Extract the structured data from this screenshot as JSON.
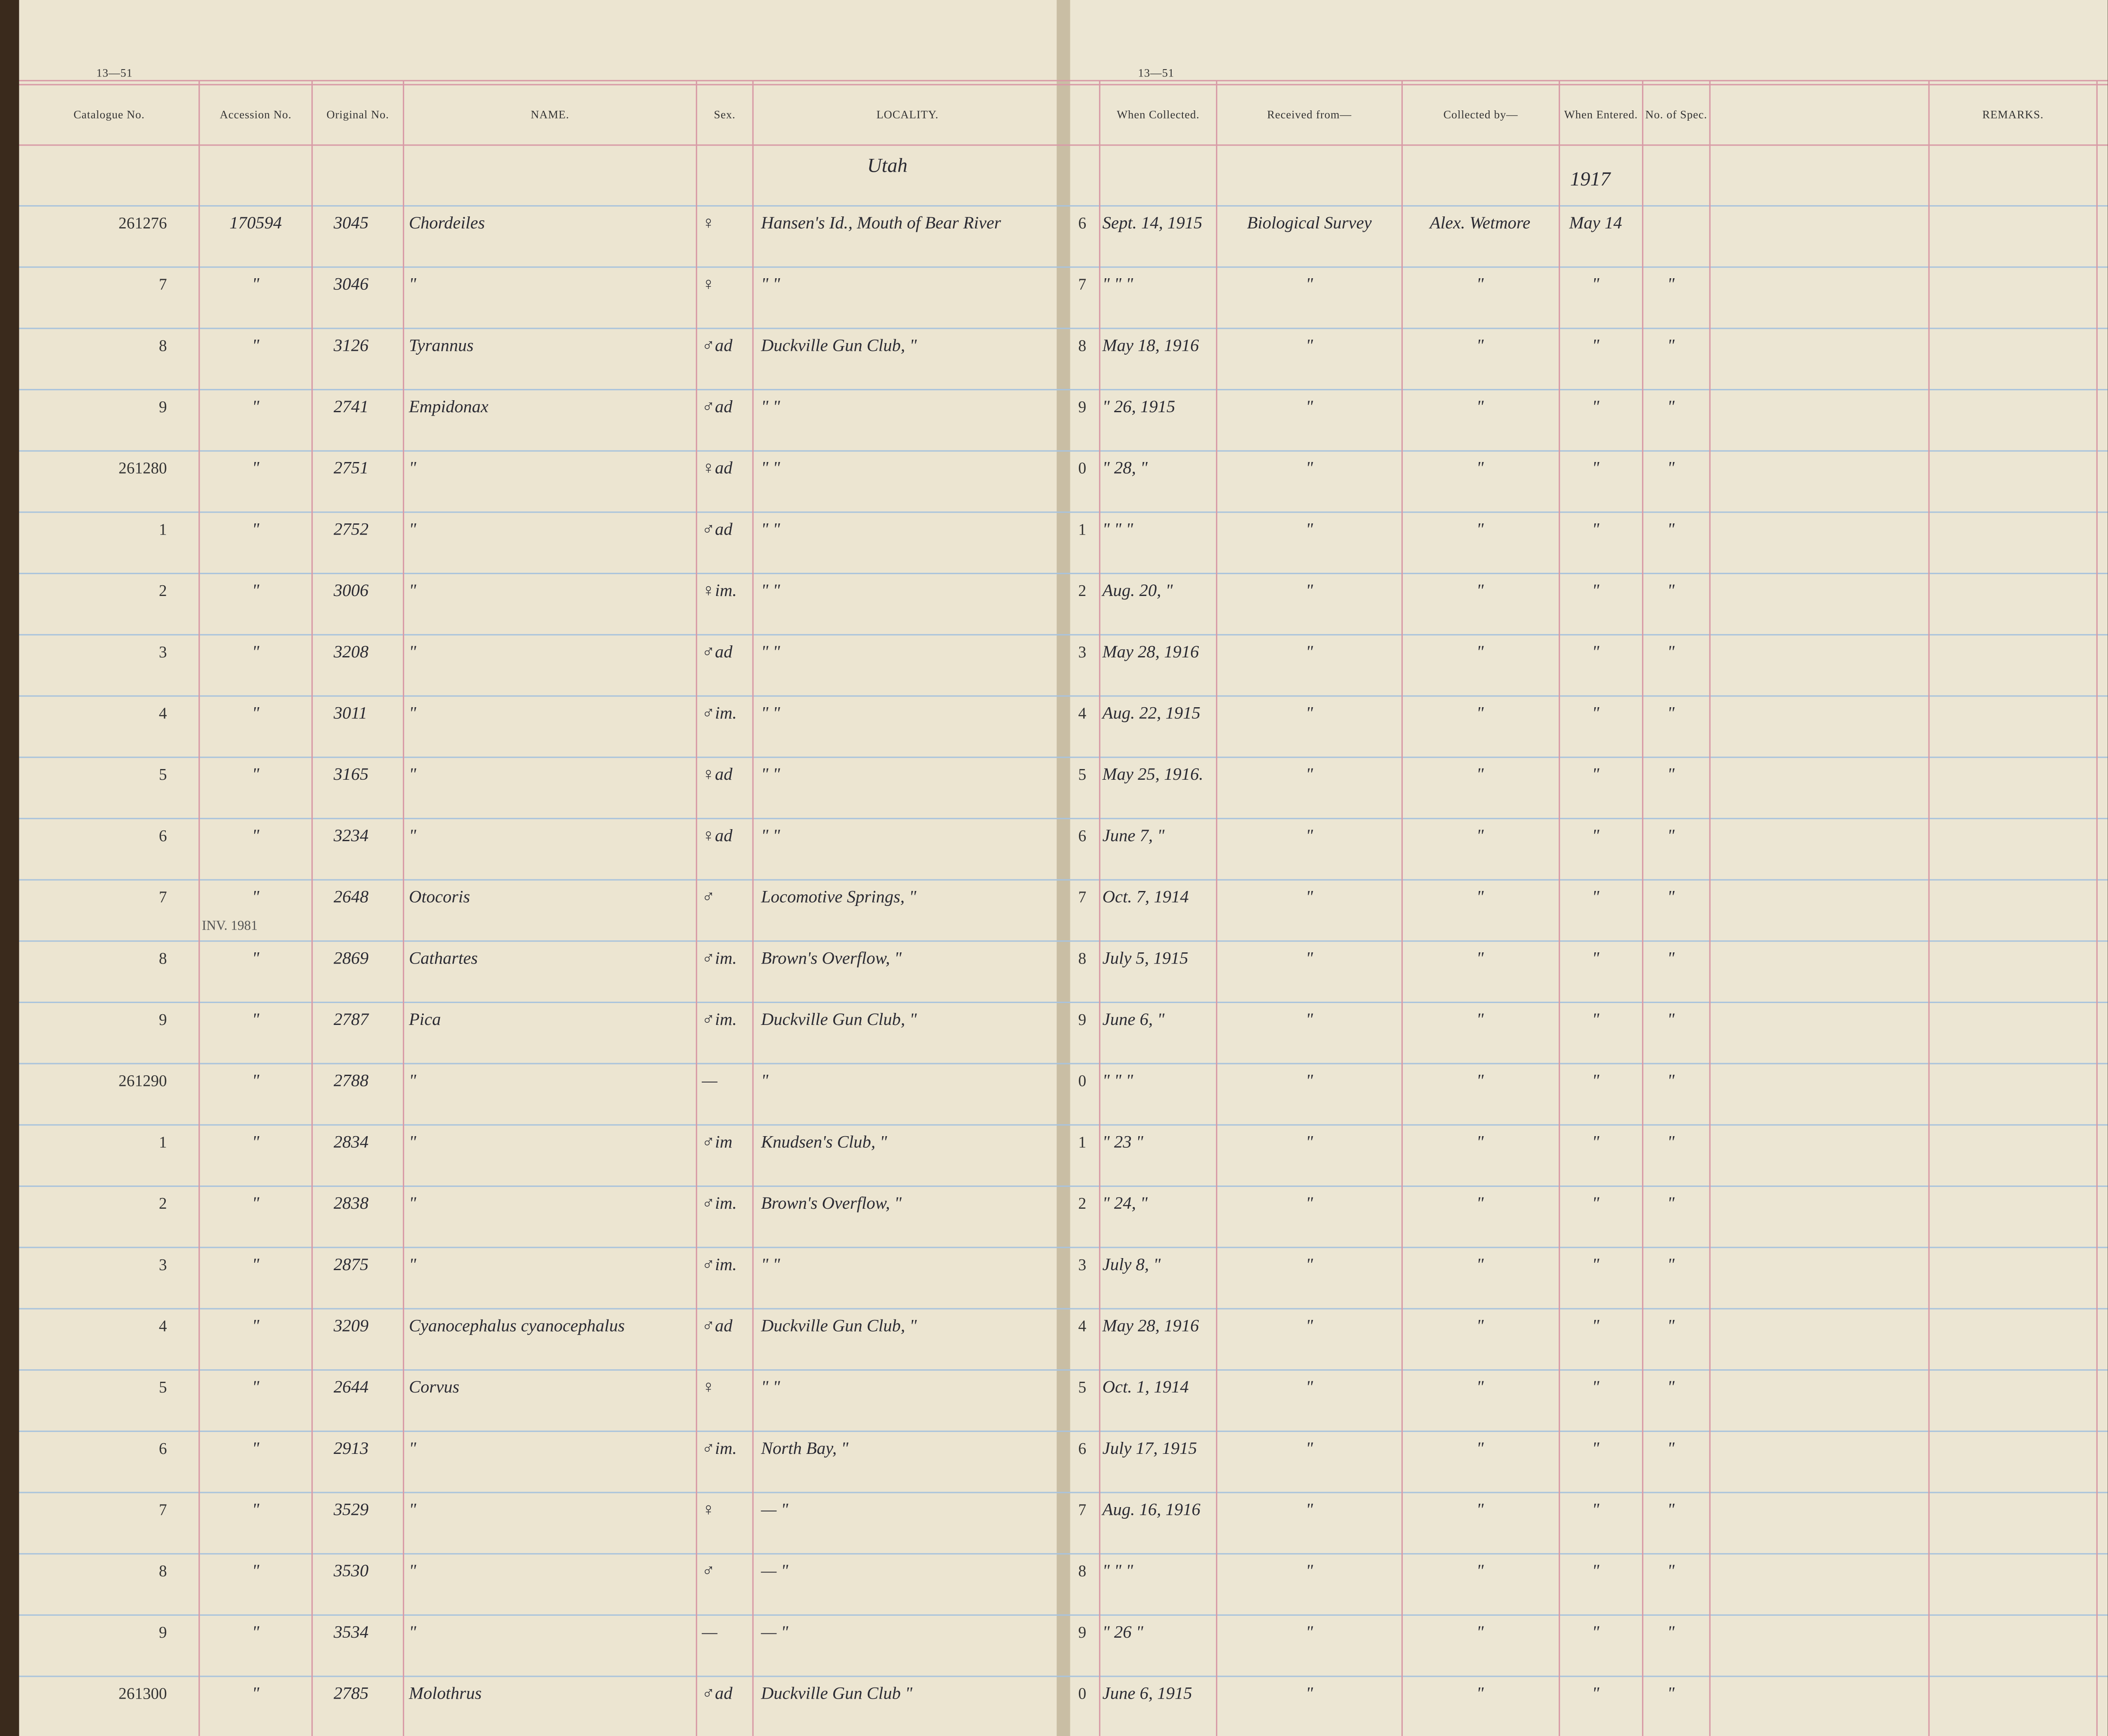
{
  "header": {
    "page_code_left": "13—51",
    "page_code_right": "13—51",
    "left_columns": [
      "Catalogue No.",
      "Accession No.",
      "Original No.",
      "NAME.",
      "Sex.",
      "LOCALITY."
    ],
    "right_columns": [
      "When Collected.",
      "Received from—",
      "Collected by—",
      "When Entered.",
      "No. of Spec.",
      "REMARKS."
    ],
    "locality_heading": "Utah",
    "year_heading": "1917",
    "stamp": "INV. 1981"
  },
  "table": {
    "rows": [
      [
        "261276",
        "170594",
        "3045",
        "Chordeiles",
        "♀",
        "Hansen's Id., Mouth of Bear River",
        "6",
        "Sept. 14, 1915",
        "Biological Survey",
        "Alex. Wetmore",
        "May 14",
        ""
      ],
      [
        "7",
        "\"",
        "3046",
        "\"",
        "♀",
        "\"     \"",
        "7",
        "\" \" \"",
        "\"",
        "\"",
        "\"",
        "\""
      ],
      [
        "8",
        "\"",
        "3126",
        "Tyrannus",
        "♂ad",
        "Duckville Gun Club, \"",
        "8",
        "May 18, 1916",
        "\"",
        "\"",
        "\"",
        "\""
      ],
      [
        "9",
        "\"",
        "2741",
        "Empidonax",
        "♂ad",
        "\"     \"",
        "9",
        "\" 26, 1915",
        "\"",
        "\"",
        "\"",
        "\""
      ],
      [
        "261280",
        "\"",
        "2751",
        "\"",
        "♀ad",
        "\"     \"",
        "0",
        "\" 28, \"",
        "\"",
        "\"",
        "\"",
        "\""
      ],
      [
        "1",
        "\"",
        "2752",
        "\"",
        "♂ad",
        "\"     \"",
        "1",
        "\" \" \"",
        "\"",
        "\"",
        "\"",
        "\""
      ],
      [
        "2",
        "\"",
        "3006",
        "\"",
        "♀im.",
        "\"     \"",
        "2",
        "Aug. 20, \"",
        "\"",
        "\"",
        "\"",
        "\""
      ],
      [
        "3",
        "\"",
        "3208",
        "\"",
        "♂ad",
        "\"     \"",
        "3",
        "May 28, 1916",
        "\"",
        "\"",
        "\"",
        "\""
      ],
      [
        "4",
        "\"",
        "3011",
        "\"",
        "♂im.",
        "\"     \"",
        "4",
        "Aug. 22, 1915",
        "\"",
        "\"",
        "\"",
        "\""
      ],
      [
        "5",
        "\"",
        "3165",
        "\"",
        "♀ad",
        "\"     \"",
        "5",
        "May 25, 1916.",
        "\"",
        "\"",
        "\"",
        "\""
      ],
      [
        "6",
        "\"",
        "3234",
        "\"",
        "♀ad",
        "\"     \"",
        "6",
        "June 7, \"",
        "\"",
        "\"",
        "\"",
        "\""
      ],
      [
        "7",
        "\"",
        "2648",
        "Otocoris",
        "♂",
        "Locomotive Springs, \"",
        "7",
        "Oct. 7, 1914",
        "\"",
        "\"",
        "\"",
        "\""
      ],
      [
        "8",
        "\"",
        "2869",
        "Cathartes",
        "♂im.",
        "Brown's Overflow, \"",
        "8",
        "July 5, 1915",
        "\"",
        "\"",
        "\"",
        "\""
      ],
      [
        "9",
        "\"",
        "2787",
        "Pica",
        "♂im.",
        "Duckville Gun Club, \"",
        "9",
        "June 6, \"",
        "\"",
        "\"",
        "\"",
        "\""
      ],
      [
        "261290",
        "\"",
        "2788",
        "\"",
        "—",
        "\"",
        "0",
        "\" \" \"",
        "\"",
        "\"",
        "\"",
        "\""
      ],
      [
        "1",
        "\"",
        "2834",
        "\"",
        "♂im",
        "Knudsen's Club, \"",
        "1",
        "\" 23 \"",
        "\"",
        "\"",
        "\"",
        "\""
      ],
      [
        "2",
        "\"",
        "2838",
        "\"",
        "♂im.",
        "Brown's Overflow, \"",
        "2",
        "\" 24, \"",
        "\"",
        "\"",
        "\"",
        "\""
      ],
      [
        "3",
        "\"",
        "2875",
        "\"",
        "♂im.",
        "\"     \"",
        "3",
        "July 8, \"",
        "\"",
        "\"",
        "\"",
        "\""
      ],
      [
        "4",
        "\"",
        "3209",
        "Cyanocephalus cyanocephalus",
        "♂ad",
        "Duckville Gun Club, \"",
        "4",
        "May 28, 1916",
        "\"",
        "\"",
        "\"",
        "\""
      ],
      [
        "5",
        "\"",
        "2644",
        "Corvus",
        "♀",
        "\"     \"",
        "5",
        "Oct. 1, 1914",
        "\"",
        "\"",
        "\"",
        "\""
      ],
      [
        "6",
        "\"",
        "2913",
        "\"",
        "♂im.",
        "North Bay, \"",
        "6",
        "July 17, 1915",
        "\"",
        "\"",
        "\"",
        "\""
      ],
      [
        "7",
        "\"",
        "3529",
        "\"",
        "♀",
        "—     \"",
        "7",
        "Aug. 16, 1916",
        "\"",
        "\"",
        "\"",
        "\""
      ],
      [
        "8",
        "\"",
        "3530",
        "\"",
        "♂",
        "—     \"",
        "8",
        "\" \" \"",
        "\"",
        "\"",
        "\"",
        "\""
      ],
      [
        "9",
        "\"",
        "3534",
        "\"",
        "—",
        "—     \"",
        "9",
        "\" 26 \"",
        "\"",
        "\"",
        "\"",
        "\""
      ],
      [
        "261300",
        "\"",
        "2785",
        "Molothrus",
        "♂ad",
        "Duckville Gun Club \"",
        "0",
        "June 6, 1915",
        "\"",
        "\"",
        "\"",
        "\""
      ]
    ]
  }
}
